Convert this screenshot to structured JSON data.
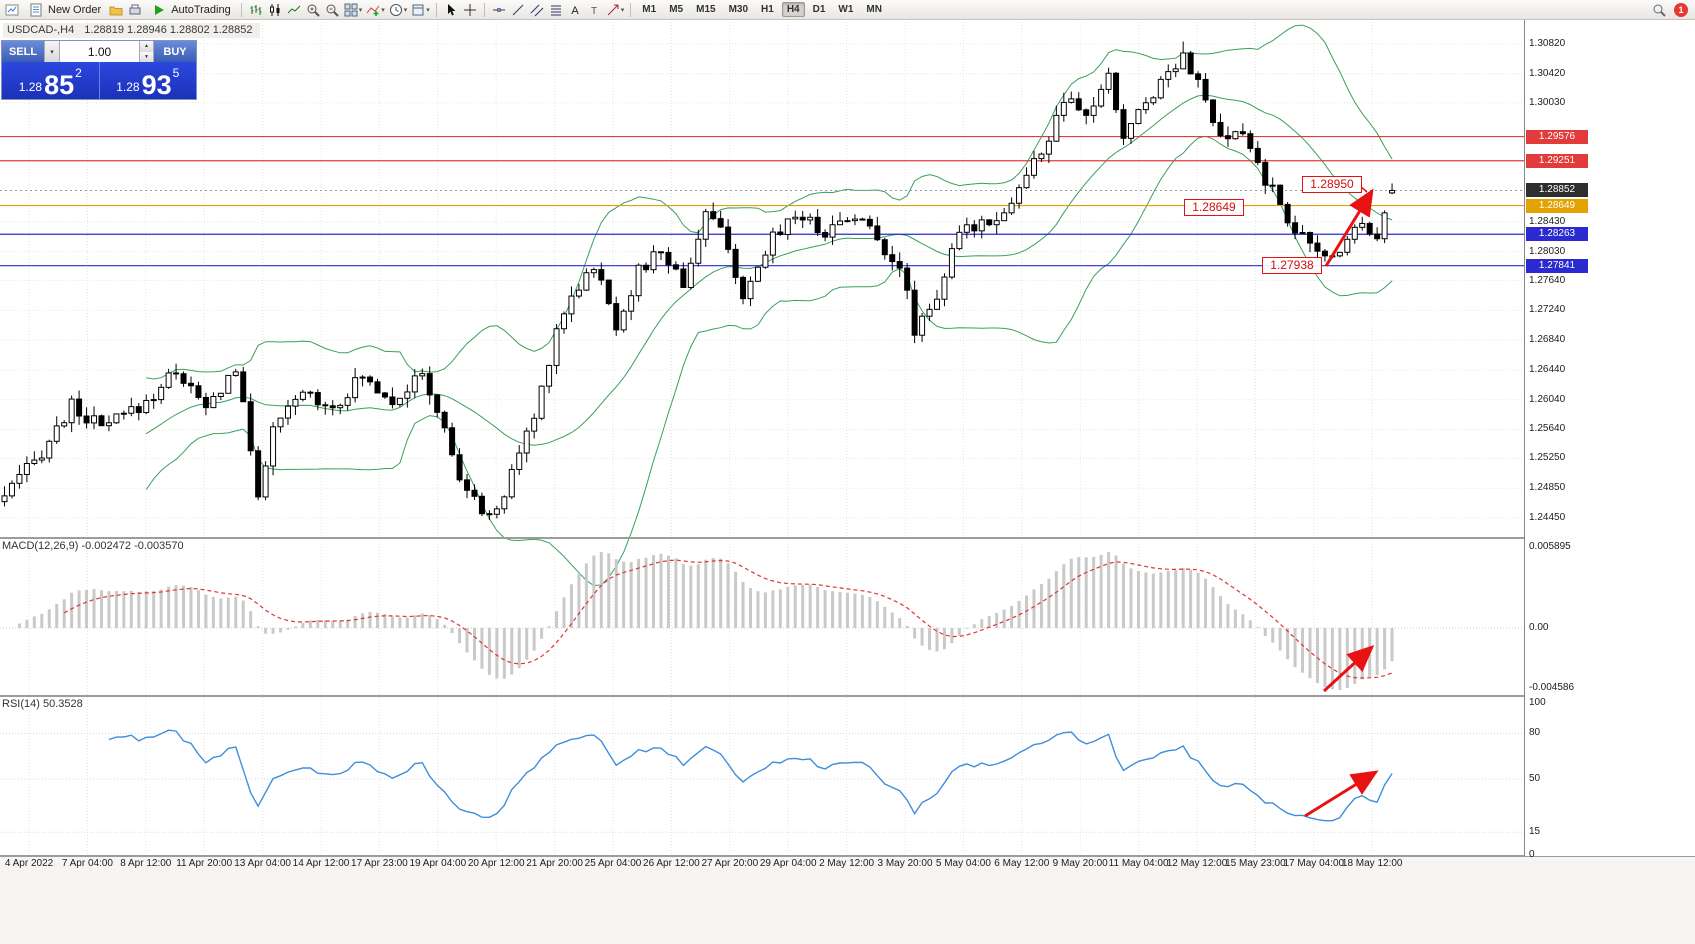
{
  "toolbar": {
    "new_order_label": "New Order",
    "autotrading_label": "AutoTrading",
    "timeframes": [
      "M1",
      "M5",
      "M15",
      "M30",
      "H1",
      "H4",
      "D1",
      "W1",
      "MN"
    ],
    "active_timeframe": "H4",
    "notification_count": "1"
  },
  "chart": {
    "symbol_title": "USDCAD-,H4",
    "ohlc": "1.28819 1.28946 1.28802 1.28852"
  },
  "one_click": {
    "sell_label": "SELL",
    "buy_label": "BUY",
    "volume": "1.00",
    "sell_price_prefix": "1.28",
    "sell_price_big": "85",
    "sell_price_sup": "2",
    "buy_price_prefix": "1.28",
    "buy_price_big": "93",
    "buy_price_sup": "5"
  },
  "price_axis": {
    "plain_labels": [
      "1.30820",
      "1.30420",
      "1.30030",
      "1.28430",
      "1.28030",
      "1.27640",
      "1.27240",
      "1.26840",
      "1.26440",
      "1.26040",
      "1.25640",
      "1.25250",
      "1.24850",
      "1.24450"
    ],
    "badges": [
      {
        "text": "1.29576",
        "color": "#e23b3b"
      },
      {
        "text": "1.29251",
        "color": "#e23b3b"
      },
      {
        "text": "1.28852",
        "color": "#2e2e2e"
      },
      {
        "text": "1.28649",
        "color": "#e2a200"
      },
      {
        "text": "1.28263",
        "color": "#2a2ad0"
      },
      {
        "text": "1.27841",
        "color": "#2a2ad0"
      }
    ]
  },
  "hlines": [
    {
      "price": 1.29576,
      "color": "#e23b3b"
    },
    {
      "price": 1.29251,
      "color": "#e23b3b"
    },
    {
      "price": 1.28649,
      "color": "#e2a200"
    },
    {
      "price": 1.28263,
      "color": "#2a2ad0"
    },
    {
      "price": 1.27841,
      "color": "#2a2ad0"
    }
  ],
  "current_price": 1.28852,
  "annotations": [
    {
      "text": "1.28950"
    },
    {
      "text": "1.28649"
    },
    {
      "text": "1.27938"
    }
  ],
  "macd": {
    "label": "MACD(12,26,9) -0.002472 -0.003570",
    "axis_top": "0.005895",
    "axis_zero": "0.00",
    "axis_bottom": "-0.004586"
  },
  "rsi": {
    "label": "RSI(14) 50.3528",
    "axis": [
      "100",
      "80",
      "50",
      "15",
      "0"
    ]
  },
  "time_axis": [
    "4 Apr 2022",
    "7 Apr 04:00",
    "8 Apr 12:00",
    "11 Apr 20:00",
    "13 Apr 04:00",
    "14 Apr 12:00",
    "17 Apr 23:00",
    "19 Apr 04:00",
    "20 Apr 12:00",
    "21 Apr 20:00",
    "25 Apr 04:00",
    "26 Apr 12:00",
    "27 Apr 20:00",
    "29 Apr 04:00",
    "2 May 12:00",
    "3 May 20:00",
    "5 May 04:00",
    "6 May 12:00",
    "9 May 20:00",
    "11 May 04:00",
    "12 May 12:00",
    "15 May 23:00",
    "17 May 04:00",
    "18 May 12:00"
  ],
  "chart_data": {
    "type": "candlestick",
    "symbol": "USDCAD",
    "timeframe": "H4",
    "price_range": [
      1.2445,
      1.3082
    ],
    "bar_count": 187,
    "anchors": [
      [
        0,
        1.2475
      ],
      [
        4,
        1.252
      ],
      [
        9,
        1.2595
      ],
      [
        13,
        1.2565
      ],
      [
        19,
        1.26
      ],
      [
        23,
        1.2645
      ],
      [
        27,
        1.259
      ],
      [
        31,
        1.2648
      ],
      [
        34,
        1.248
      ],
      [
        36,
        1.256
      ],
      [
        40,
        1.2615
      ],
      [
        44,
        1.2595
      ],
      [
        48,
        1.2635
      ],
      [
        52,
        1.2605
      ],
      [
        56,
        1.2635
      ],
      [
        58,
        1.259
      ],
      [
        61,
        1.25
      ],
      [
        63,
        1.2465
      ],
      [
        66,
        1.2448
      ],
      [
        68,
        1.251
      ],
      [
        71,
        1.258
      ],
      [
        74,
        1.27
      ],
      [
        76,
        1.2745
      ],
      [
        79,
        1.2785
      ],
      [
        82,
        1.2705
      ],
      [
        85,
        1.2775
      ],
      [
        88,
        1.2805
      ],
      [
        91,
        1.276
      ],
      [
        94,
        1.2855
      ],
      [
        97,
        1.2815
      ],
      [
        99,
        1.273
      ],
      [
        103,
        1.2825
      ],
      [
        106,
        1.2855
      ],
      [
        110,
        1.283
      ],
      [
        114,
        1.2855
      ],
      [
        117,
        1.282
      ],
      [
        120,
        1.2785
      ],
      [
        122,
        1.27
      ],
      [
        125,
        1.2745
      ],
      [
        128,
        1.2825
      ],
      [
        131,
        1.2845
      ],
      [
        134,
        1.2855
      ],
      [
        137,
        1.2905
      ],
      [
        140,
        1.2955
      ],
      [
        142,
        1.3005
      ],
      [
        145,
        1.2985
      ],
      [
        148,
        1.3035
      ],
      [
        150,
        1.2958
      ],
      [
        153,
        1.3005
      ],
      [
        156,
        1.3045
      ],
      [
        158,
        1.3072
      ],
      [
        161,
        1.3005
      ],
      [
        163,
        1.295
      ],
      [
        166,
        1.2962
      ],
      [
        169,
        1.29
      ],
      [
        172,
        1.285
      ],
      [
        174,
        1.282
      ],
      [
        176,
        1.28
      ],
      [
        178,
        1.2795
      ],
      [
        180,
        1.2825
      ],
      [
        182,
        1.2843
      ],
      [
        184,
        1.2828
      ],
      [
        186,
        1.2884
      ]
    ],
    "last_candle": {
      "open": 1.28819,
      "high": 1.28946,
      "low": 1.28802,
      "close": 1.28852
    },
    "swing_low": {
      "index": 178,
      "price": 1.27938
    },
    "swing_high": {
      "index": 158,
      "price": 1.30853
    },
    "indicators": [
      {
        "name": "Bollinger Bands",
        "period": 20,
        "deviation": 2,
        "color": "#3aa05a"
      },
      {
        "name": "MACD",
        "fast": 12,
        "slow": 26,
        "signal": 9,
        "values": "-0.002472 -0.003570"
      },
      {
        "name": "RSI",
        "period": 14,
        "value": "50.3528"
      }
    ]
  }
}
